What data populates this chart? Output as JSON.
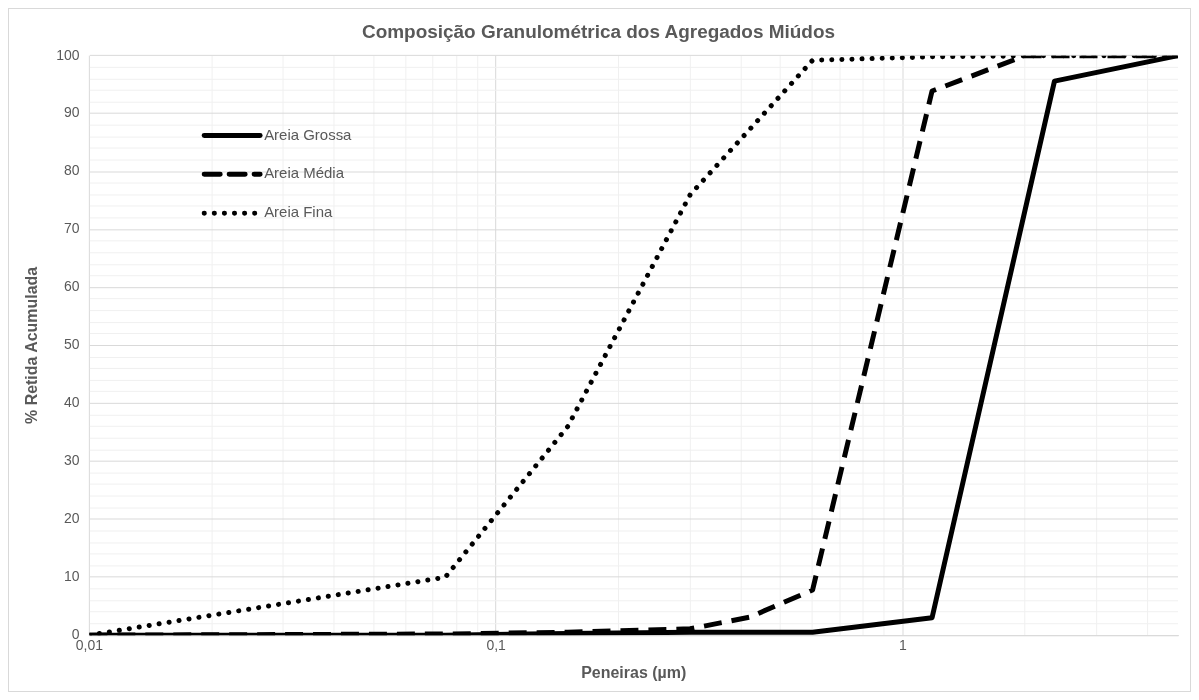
{
  "chart_data": {
    "type": "line",
    "title": "Composição Granulométrica dos Agregados Miúdos",
    "xlabel": "Peneiras (µm)",
    "ylabel": "% Retida Acumulada",
    "log": "x",
    "grid": true,
    "legend": "top left",
    "marker": "none",
    "xlim": [
      0.01,
      4.75
    ],
    "xticks": [
      {
        "value": 0.01,
        "label": "0,01"
      },
      {
        "value": 0.02,
        "label": null
      },
      {
        "value": 0.03,
        "label": null
      },
      {
        "value": 0.04,
        "label": null
      },
      {
        "value": 0.05,
        "label": null
      },
      {
        "value": 0.06,
        "label": null
      },
      {
        "value": 0.07,
        "label": null
      },
      {
        "value": 0.08,
        "label": null
      },
      {
        "value": 0.09,
        "label": null
      },
      {
        "value": 0.1,
        "label": "0,1"
      },
      {
        "value": 0.2,
        "label": null
      },
      {
        "value": 0.3,
        "label": null
      },
      {
        "value": 0.4,
        "label": null
      },
      {
        "value": 0.5,
        "label": null
      },
      {
        "value": 0.6,
        "label": null
      },
      {
        "value": 0.7,
        "label": null
      },
      {
        "value": 0.8,
        "label": null
      },
      {
        "value": 0.9,
        "label": null
      },
      {
        "value": 1,
        "label": "1"
      },
      {
        "value": 2,
        "label": null
      },
      {
        "value": 3,
        "label": null
      },
      {
        "value": 4,
        "label": null
      }
    ],
    "ylim": [
      0,
      100
    ],
    "yticks": [
      0,
      {
        "value": 2,
        "label": null
      },
      {
        "value": 4,
        "label": null
      },
      {
        "value": 6,
        "label": null
      },
      {
        "value": 8,
        "label": null
      },
      10,
      {
        "value": 12,
        "label": null
      },
      {
        "value": 14,
        "label": null
      },
      {
        "value": 16,
        "label": null
      },
      {
        "value": 18,
        "label": null
      },
      20,
      {
        "value": 22,
        "label": null
      },
      {
        "value": 24,
        "label": null
      },
      {
        "value": 26,
        "label": null
      },
      {
        "value": 28,
        "label": null
      },
      30,
      {
        "value": 32,
        "label": null
      },
      {
        "value": 34,
        "label": null
      },
      {
        "value": 36,
        "label": null
      },
      {
        "value": 38,
        "label": null
      },
      40,
      {
        "value": 42,
        "label": null
      },
      {
        "value": 44,
        "label": null
      },
      {
        "value": 46,
        "label": null
      },
      {
        "value": 48,
        "label": null
      },
      50,
      {
        "value": 52,
        "label": null
      },
      {
        "value": 54,
        "label": null
      },
      {
        "value": 56,
        "label": null
      },
      {
        "value": 58,
        "label": null
      },
      60,
      {
        "value": 62,
        "label": null
      },
      {
        "value": 64,
        "label": null
      },
      {
        "value": 66,
        "label": null
      },
      {
        "value": 68,
        "label": null
      },
      70,
      {
        "value": 72,
        "label": null
      },
      {
        "value": 74,
        "label": null
      },
      {
        "value": 76,
        "label": null
      },
      {
        "value": 78,
        "label": null
      },
      80,
      {
        "value": 82,
        "label": null
      },
      {
        "value": 84,
        "label": null
      },
      {
        "value": 86,
        "label": null
      },
      {
        "value": 88,
        "label": null
      },
      90,
      {
        "value": 92,
        "label": null
      },
      {
        "value": 94,
        "label": null
      },
      {
        "value": 96,
        "label": null
      },
      {
        "value": 98,
        "label": null
      },
      100
    ],
    "series": [
      {
        "name": "Areia Grossa",
        "color": "#000000",
        "line_style": "solid",
        "x": [
          0.01,
          0.075,
          0.15,
          0.3,
          0.6,
          1.18,
          2.36,
          4.75
        ],
        "values": [
          0,
          0,
          0.3,
          0.5,
          0.5,
          3,
          95.6,
          100
        ]
      },
      {
        "name": "Areia Média",
        "color": "#000000",
        "line_style": "dashed",
        "x": [
          0.01,
          0.075,
          0.15,
          0.3,
          0.42,
          0.6,
          1.18,
          2,
          4.75
        ],
        "values": [
          0,
          0.2,
          0.5,
          1.1,
          3.1,
          7.8,
          93.9,
          100,
          100
        ]
      },
      {
        "name": "Areia Fina",
        "color": "#000000",
        "line_style": "dotted",
        "x": [
          0.01,
          0.075,
          0.15,
          0.3,
          0.6,
          1.18,
          2.36,
          4.75
        ],
        "values": [
          0,
          10,
          36,
          76,
          99.2,
          99.8,
          100,
          100
        ]
      }
    ]
  }
}
